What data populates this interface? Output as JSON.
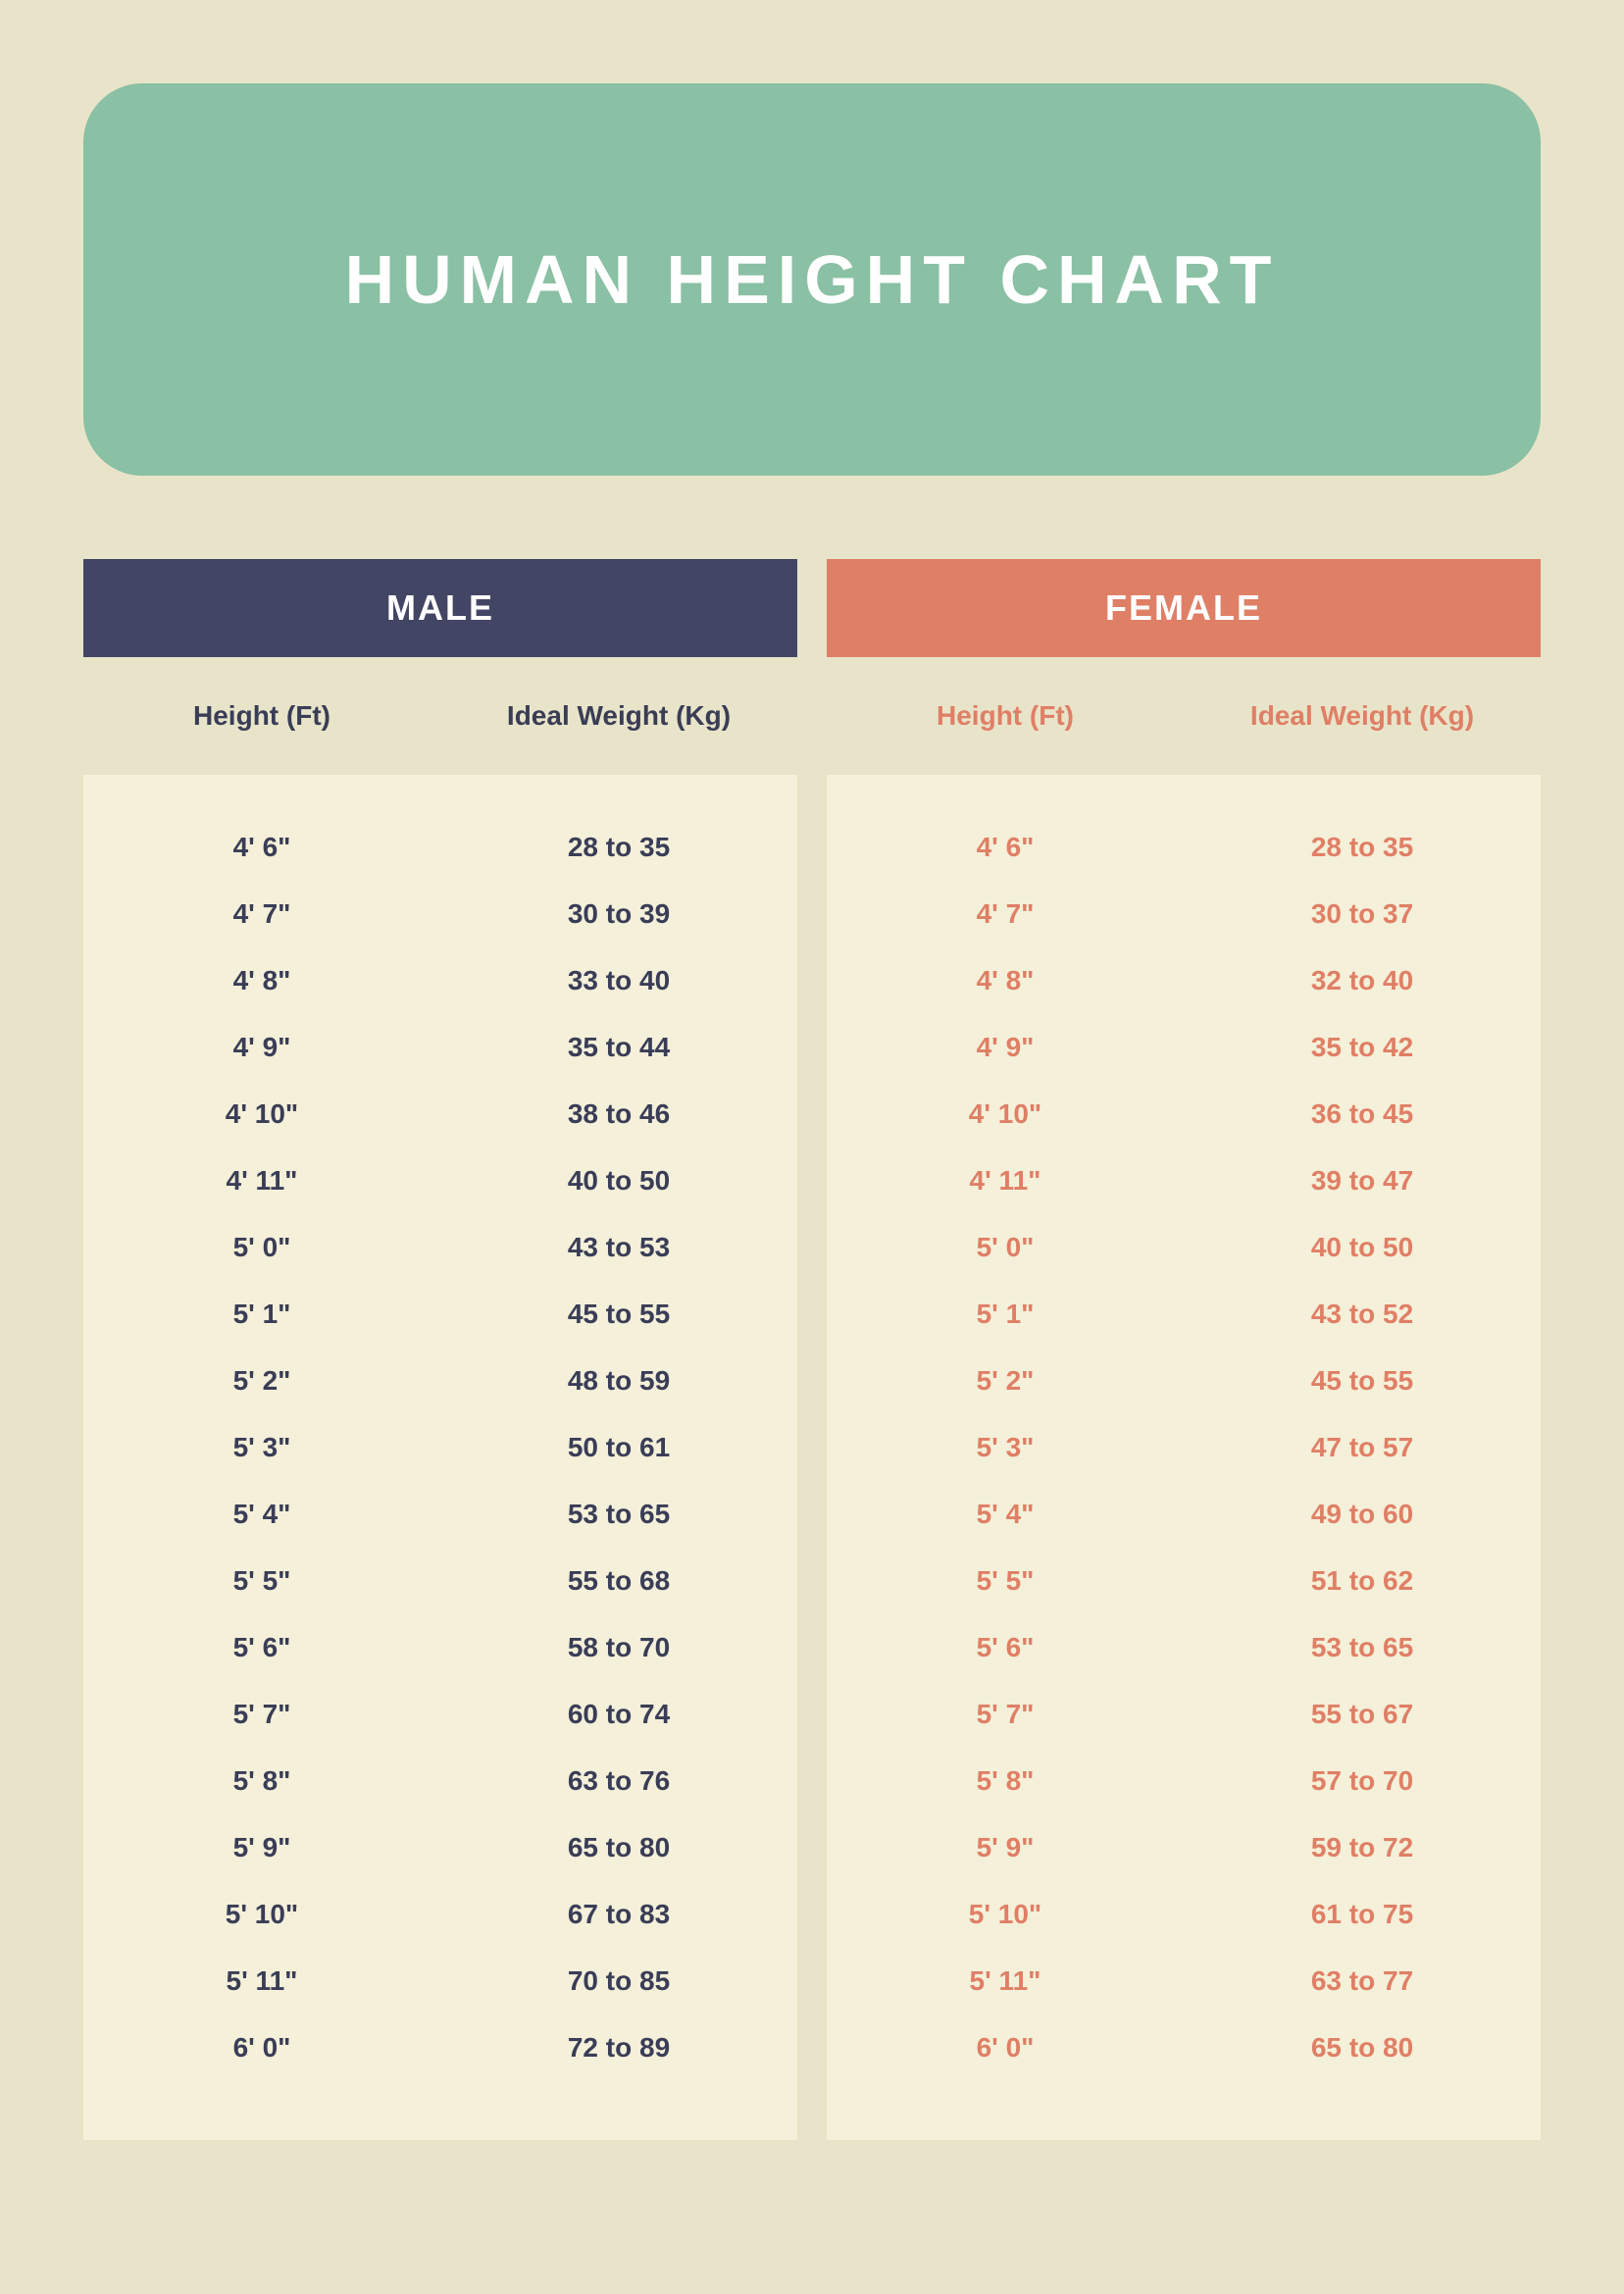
{
  "title": "HUMAN HEIGHT CHART",
  "colors": {
    "background": "#e8e4c9",
    "titleBox": "#8ac0a3",
    "titleText": "#ffffff",
    "maleHeader": "#424564",
    "femaleHeader": "#df7f66",
    "maleText": "#3a3d56",
    "femaleText": "#df7f66",
    "dataRowBg": "#f4f0d9",
    "headerText": "#ffffff"
  },
  "typography": {
    "titleFontSize": 70,
    "titleLetterSpacing": 8,
    "sectionHeaderFontSize": 36,
    "columnHeaderFontSize": 28,
    "dataCellFontSize": 28
  },
  "layout": {
    "titleBoxHeight": 400,
    "titleBoxBorderRadius": 60,
    "sectionHeaderHeight": 100,
    "columnHeaderHeight": 120,
    "dataRowHeight": 68,
    "tableGap": 30
  },
  "male": {
    "label": "MALE",
    "columns": [
      "Height (Ft)",
      "Ideal Weight (Kg)"
    ],
    "rows": [
      [
        "4' 6\"",
        "28 to 35"
      ],
      [
        "4' 7\"",
        "30 to 39"
      ],
      [
        "4' 8\"",
        "33 to 40"
      ],
      [
        "4' 9\"",
        "35 to 44"
      ],
      [
        "4' 10\"",
        "38 to 46"
      ],
      [
        "4' 11\"",
        "40 to 50"
      ],
      [
        "5' 0\"",
        "43 to 53"
      ],
      [
        "5' 1\"",
        "45 to 55"
      ],
      [
        "5' 2\"",
        "48 to 59"
      ],
      [
        "5' 3\"",
        "50 to 61"
      ],
      [
        "5' 4\"",
        "53 to 65"
      ],
      [
        "5' 5\"",
        "55 to 68"
      ],
      [
        "5' 6\"",
        "58 to 70"
      ],
      [
        "5' 7\"",
        "60 to 74"
      ],
      [
        "5' 8\"",
        "63 to 76"
      ],
      [
        "5' 9\"",
        "65 to 80"
      ],
      [
        "5' 10\"",
        "67 to 83"
      ],
      [
        "5' 11\"",
        "70 to 85"
      ],
      [
        "6' 0\"",
        "72 to 89"
      ]
    ]
  },
  "female": {
    "label": "FEMALE",
    "columns": [
      "Height (Ft)",
      "Ideal Weight (Kg)"
    ],
    "rows": [
      [
        "4' 6\"",
        "28 to 35"
      ],
      [
        "4' 7\"",
        "30 to 37"
      ],
      [
        "4' 8\"",
        "32 to 40"
      ],
      [
        "4' 9\"",
        "35 to 42"
      ],
      [
        "4' 10\"",
        "36 to 45"
      ],
      [
        "4' 11\"",
        "39 to 47"
      ],
      [
        "5' 0\"",
        "40 to 50"
      ],
      [
        "5' 1\"",
        "43 to 52"
      ],
      [
        "5' 2\"",
        "45 to 55"
      ],
      [
        "5' 3\"",
        "47 to 57"
      ],
      [
        "5' 4\"",
        "49 to 60"
      ],
      [
        "5' 5\"",
        "51 to 62"
      ],
      [
        "5' 6\"",
        "53 to 65"
      ],
      [
        "5' 7\"",
        "55 to 67"
      ],
      [
        "5' 8\"",
        "57 to 70"
      ],
      [
        "5' 9\"",
        "59 to 72"
      ],
      [
        "5' 10\"",
        "61 to 75"
      ],
      [
        "5' 11\"",
        "63 to 77"
      ],
      [
        "6' 0\"",
        "65 to 80"
      ]
    ]
  }
}
